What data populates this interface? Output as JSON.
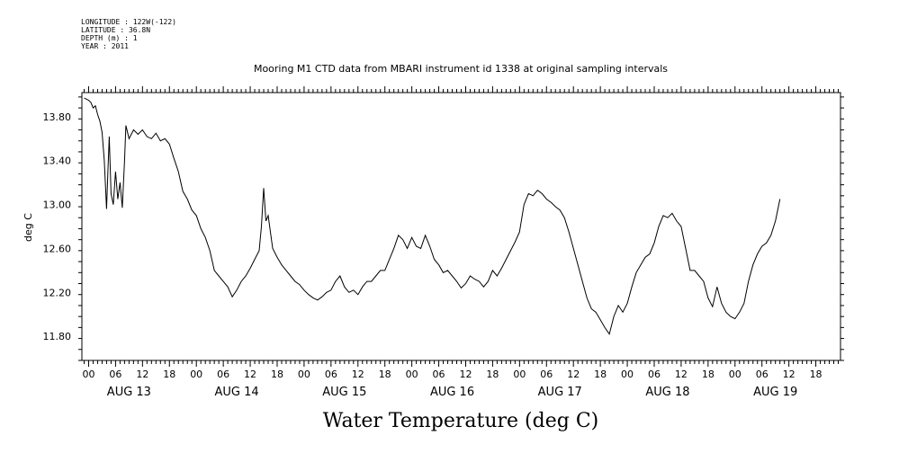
{
  "header": {
    "longitude": "LONGITUDE : 122W(-122)",
    "latitude": "LATITUDE : 36.8N",
    "depth": "DEPTH (m) : 1",
    "year": "YEAR : 2011"
  },
  "chart_data": {
    "type": "line",
    "title": "Mooring M1 CTD data from MBARI instrument id 1338 at original sampling intervals",
    "xlabel": "Water Temperature (deg C)",
    "ylabel": "deg C",
    "ylim": [
      11.58,
      14.02
    ],
    "y_ticks": [
      "13.80",
      "13.40",
      "13.00",
      "12.60",
      "12.20",
      "11.80"
    ],
    "x_hour_ticks": [
      "00",
      "06",
      "12",
      "18",
      "00",
      "06",
      "12",
      "18",
      "00",
      "06",
      "12",
      "18",
      "00",
      "06",
      "12",
      "18",
      "00",
      "06",
      "12",
      "18",
      "00",
      "06",
      "12",
      "18",
      "00",
      "06",
      "12",
      "18"
    ],
    "x_day_labels": [
      "AUG 13",
      "AUG 14",
      "AUG 15",
      "AUG 16",
      "AUG 17",
      "AUG 18",
      "AUG 19"
    ],
    "x_unit": "hours since AUG 13 00:00",
    "xlim": [
      -1.5,
      167.5
    ],
    "series": [
      {
        "name": "",
        "points": [
          [
            -1,
            13.97
          ],
          [
            0,
            13.95
          ],
          [
            0.5,
            13.93
          ],
          [
            1,
            13.88
          ],
          [
            1.5,
            13.9
          ],
          [
            2,
            13.82
          ],
          [
            2.5,
            13.76
          ],
          [
            3,
            13.66
          ],
          [
            3.5,
            13.4
          ],
          [
            4,
            12.96
          ],
          [
            4.3,
            13.3
          ],
          [
            4.6,
            13.62
          ],
          [
            5,
            13.1
          ],
          [
            5.5,
            13.0
          ],
          [
            6,
            13.3
          ],
          [
            6.5,
            13.05
          ],
          [
            7,
            13.2
          ],
          [
            7.5,
            12.97
          ],
          [
            8,
            13.4
          ],
          [
            8.3,
            13.72
          ],
          [
            9,
            13.6
          ],
          [
            10,
            13.68
          ],
          [
            11,
            13.64
          ],
          [
            12,
            13.68
          ],
          [
            13,
            13.62
          ],
          [
            14,
            13.6
          ],
          [
            15,
            13.65
          ],
          [
            16,
            13.58
          ],
          [
            17,
            13.6
          ],
          [
            18,
            13.55
          ],
          [
            19,
            13.42
          ],
          [
            20,
            13.3
          ],
          [
            21,
            13.12
          ],
          [
            22,
            13.05
          ],
          [
            23,
            12.95
          ],
          [
            24,
            12.9
          ],
          [
            25,
            12.78
          ],
          [
            26,
            12.7
          ],
          [
            27,
            12.58
          ],
          [
            28,
            12.4
          ],
          [
            29,
            12.35
          ],
          [
            30,
            12.3
          ],
          [
            31,
            12.25
          ],
          [
            32,
            12.16
          ],
          [
            33,
            12.22
          ],
          [
            34,
            12.3
          ],
          [
            35,
            12.35
          ],
          [
            36,
            12.42
          ],
          [
            37,
            12.5
          ],
          [
            38,
            12.58
          ],
          [
            38.5,
            12.8
          ],
          [
            39,
            13.15
          ],
          [
            39.5,
            12.85
          ],
          [
            40,
            12.9
          ],
          [
            41,
            12.6
          ],
          [
            42,
            12.52
          ],
          [
            43,
            12.45
          ],
          [
            44,
            12.4
          ],
          [
            45,
            12.35
          ],
          [
            46,
            12.3
          ],
          [
            47,
            12.27
          ],
          [
            48,
            12.22
          ],
          [
            49,
            12.18
          ],
          [
            50,
            12.15
          ],
          [
            51,
            12.13
          ],
          [
            52,
            12.16
          ],
          [
            53,
            12.2
          ],
          [
            54,
            12.22
          ],
          [
            55,
            12.3
          ],
          [
            56,
            12.35
          ],
          [
            57,
            12.25
          ],
          [
            58,
            12.2
          ],
          [
            59,
            12.22
          ],
          [
            60,
            12.18
          ],
          [
            61,
            12.25
          ],
          [
            62,
            12.3
          ],
          [
            63,
            12.3
          ],
          [
            64,
            12.35
          ],
          [
            65,
            12.4
          ],
          [
            66,
            12.4
          ],
          [
            67,
            12.5
          ],
          [
            68,
            12.6
          ],
          [
            69,
            12.72
          ],
          [
            70,
            12.68
          ],
          [
            71,
            12.6
          ],
          [
            72,
            12.7
          ],
          [
            73,
            12.62
          ],
          [
            74,
            12.6
          ],
          [
            75,
            12.72
          ],
          [
            76,
            12.62
          ],
          [
            77,
            12.5
          ],
          [
            78,
            12.45
          ],
          [
            79,
            12.38
          ],
          [
            80,
            12.4
          ],
          [
            81,
            12.35
          ],
          [
            82,
            12.3
          ],
          [
            83,
            12.24
          ],
          [
            84,
            12.28
          ],
          [
            85,
            12.35
          ],
          [
            86,
            12.32
          ],
          [
            87,
            12.3
          ],
          [
            88,
            12.25
          ],
          [
            89,
            12.3
          ],
          [
            90,
            12.4
          ],
          [
            91,
            12.35
          ],
          [
            92,
            12.42
          ],
          [
            93,
            12.5
          ],
          [
            94,
            12.58
          ],
          [
            95,
            12.66
          ],
          [
            96,
            12.75
          ],
          [
            97,
            13.0
          ],
          [
            98,
            13.1
          ],
          [
            99,
            13.08
          ],
          [
            100,
            13.13
          ],
          [
            101,
            13.1
          ],
          [
            102,
            13.05
          ],
          [
            103,
            13.02
          ],
          [
            104,
            12.98
          ],
          [
            105,
            12.95
          ],
          [
            106,
            12.88
          ],
          [
            107,
            12.75
          ],
          [
            108,
            12.6
          ],
          [
            109,
            12.45
          ],
          [
            110,
            12.3
          ],
          [
            111,
            12.15
          ],
          [
            112,
            12.05
          ],
          [
            113,
            12.02
          ],
          [
            114,
            11.95
          ],
          [
            115,
            11.88
          ],
          [
            116,
            11.82
          ],
          [
            117,
            11.98
          ],
          [
            118,
            12.08
          ],
          [
            119,
            12.02
          ],
          [
            120,
            12.1
          ],
          [
            121,
            12.25
          ],
          [
            122,
            12.38
          ],
          [
            123,
            12.45
          ],
          [
            124,
            12.52
          ],
          [
            125,
            12.55
          ],
          [
            126,
            12.65
          ],
          [
            127,
            12.8
          ],
          [
            128,
            12.9
          ],
          [
            129,
            12.88
          ],
          [
            130,
            12.92
          ],
          [
            131,
            12.85
          ],
          [
            132,
            12.8
          ],
          [
            133,
            12.6
          ],
          [
            134,
            12.4
          ],
          [
            135,
            12.4
          ],
          [
            136,
            12.35
          ],
          [
            137,
            12.3
          ],
          [
            138,
            12.15
          ],
          [
            139,
            12.07
          ],
          [
            140,
            12.25
          ],
          [
            141,
            12.1
          ],
          [
            142,
            12.02
          ],
          [
            143,
            11.98
          ],
          [
            144,
            11.96
          ],
          [
            145,
            12.02
          ],
          [
            146,
            12.1
          ],
          [
            147,
            12.3
          ],
          [
            148,
            12.45
          ],
          [
            149,
            12.55
          ],
          [
            150,
            12.62
          ],
          [
            151,
            12.65
          ],
          [
            152,
            12.72
          ],
          [
            153,
            12.85
          ],
          [
            154,
            13.05
          ]
        ]
      }
    ]
  }
}
